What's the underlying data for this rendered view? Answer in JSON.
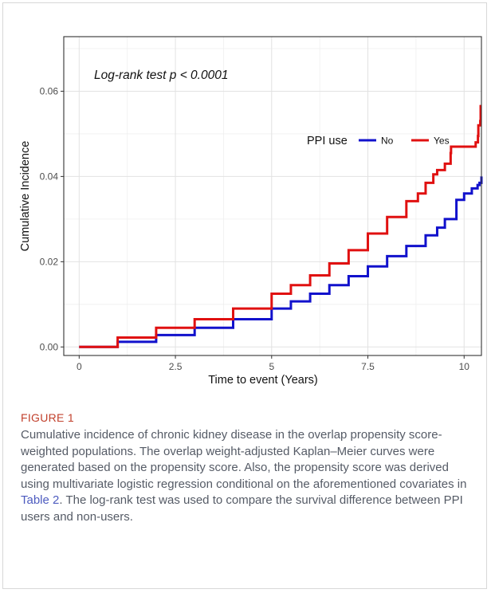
{
  "figure": {
    "label": "FIGURE 1",
    "caption_part1": "Cumulative incidence of chronic kidney disease in the overlap propensity score-weighted populations. The overlap weight-adjusted Kaplan–Meier curves were generated based on the propensity score. Also, the propensity score was derived using multivariate logistic regression conditional on the aforementioned covariates in ",
    "caption_link": "Table 2",
    "caption_part2": ". The log-rank test was used to compare the survival difference between PPI users and non-users."
  },
  "chart_data": {
    "type": "line",
    "step": true,
    "annotation": "Log-rank test p < 0.0001",
    "xlabel": "Time to event (Years)",
    "ylabel": "Cumulative Incidence",
    "xlim": [
      -0.4,
      10.45
    ],
    "ylim": [
      -0.002,
      0.0728
    ],
    "xticks": [
      0,
      2.5,
      5,
      7.5,
      10
    ],
    "xtick_labels": [
      "0",
      "2.5",
      "5",
      "7.5",
      "10"
    ],
    "yticks": [
      0,
      0.02,
      0.04,
      0.06
    ],
    "ytick_labels": [
      "0.00",
      "0.02",
      "0.04",
      "0.06"
    ],
    "grid": true,
    "legend": {
      "title": "PPI use",
      "position": "right-inside"
    },
    "series": [
      {
        "name": "No",
        "color": "#1111cc",
        "x": [
          0,
          1,
          2,
          3,
          4,
          5,
          5.5,
          6,
          6.5,
          7,
          7.5,
          8,
          8.5,
          9,
          9.3,
          9.5,
          9.8,
          10,
          10.2,
          10.35,
          10.4,
          10.45
        ],
        "y": [
          0,
          0.0012,
          0.0028,
          0.0045,
          0.0065,
          0.009,
          0.0107,
          0.0125,
          0.0145,
          0.0166,
          0.0189,
          0.0213,
          0.0237,
          0.0262,
          0.028,
          0.03,
          0.0345,
          0.036,
          0.0372,
          0.038,
          0.0385,
          0.04
        ]
      },
      {
        "name": "Yes",
        "color": "#e01010",
        "x": [
          0,
          1,
          2,
          3,
          4,
          5,
          5.5,
          6,
          6.5,
          7,
          7.5,
          8,
          8.5,
          8.8,
          9.0,
          9.2,
          9.3,
          9.5,
          9.65,
          9.66,
          10.0,
          10.2,
          10.3,
          10.36,
          10.37,
          10.42,
          10.43,
          10.45
        ],
        "y": [
          0,
          0.0022,
          0.0045,
          0.0065,
          0.009,
          0.0125,
          0.0145,
          0.0168,
          0.0196,
          0.0227,
          0.0266,
          0.0305,
          0.0342,
          0.036,
          0.0385,
          0.0405,
          0.0415,
          0.043,
          0.0455,
          0.047,
          0.047,
          0.047,
          0.048,
          0.0495,
          0.052,
          0.053,
          0.0565,
          0.0565
        ]
      }
    ]
  }
}
